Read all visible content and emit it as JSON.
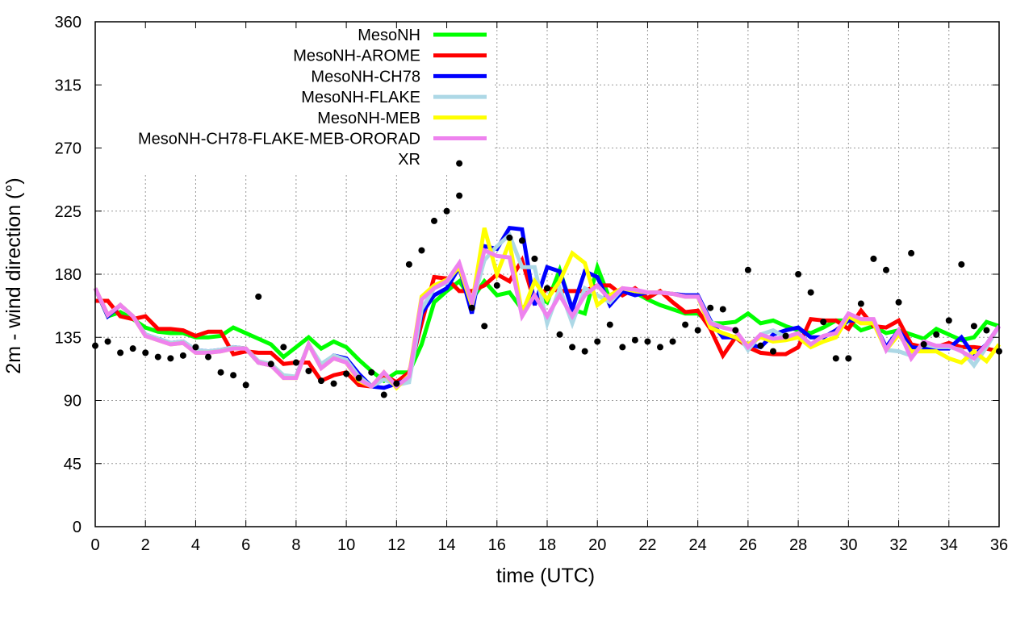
{
  "chart_data": {
    "type": "line",
    "title": "",
    "xlabel": "time (UTC)",
    "ylabel": "2m - wind direction (°)",
    "xlim": [
      0,
      36
    ],
    "ylim": [
      0,
      360
    ],
    "xticks": [
      0,
      2,
      4,
      6,
      8,
      10,
      12,
      14,
      16,
      18,
      20,
      22,
      24,
      26,
      28,
      30,
      32,
      34,
      36
    ],
    "yticks": [
      0,
      45,
      90,
      135,
      180,
      225,
      270,
      315,
      360
    ],
    "grid": true,
    "legend_placement": "top-left",
    "x_step": 0.5,
    "series": [
      {
        "name": "MesoNH",
        "color": "#00ff00",
        "style": "line",
        "values": [
          170,
          150,
          153,
          148,
          142,
          139,
          138,
          138,
          135,
          135,
          136,
          142,
          138,
          134,
          130,
          121,
          128,
          135,
          127,
          132,
          128,
          119,
          111,
          104,
          110,
          110,
          130,
          160,
          168,
          175,
          162,
          175,
          165,
          167,
          155,
          165,
          160,
          183,
          155,
          152,
          185,
          162,
          168,
          167,
          162,
          158,
          155,
          152,
          152,
          145,
          145,
          146,
          152,
          145,
          147,
          143,
          140,
          138,
          142,
          147,
          147,
          140,
          143,
          138,
          140,
          137,
          134,
          141,
          137,
          133,
          135,
          146,
          143
        ]
      },
      {
        "name": "MesoNH-AROME",
        "color": "#ff0000",
        "style": "line",
        "values": [
          161,
          161,
          150,
          148,
          150,
          141,
          141,
          140,
          136,
          139,
          139,
          123,
          125,
          124,
          124,
          116,
          117,
          117,
          104,
          108,
          110,
          101,
          100,
          108,
          103,
          110,
          145,
          178,
          177,
          168,
          168,
          172,
          180,
          175,
          190,
          160,
          170,
          168,
          168,
          168,
          172,
          172,
          165,
          170,
          163,
          168,
          160,
          153,
          154,
          141,
          122,
          135,
          128,
          124,
          123,
          123,
          128,
          148,
          147,
          147,
          141,
          154,
          143,
          142,
          147,
          130,
          128,
          128,
          131,
          128,
          128,
          127,
          125
        ]
      },
      {
        "name": "MesoNH-CH78",
        "color": "#0000ff",
        "style": "line",
        "values": [
          170,
          150,
          158,
          150,
          137,
          134,
          131,
          132,
          126,
          125,
          126,
          128,
          127,
          117,
          115,
          107,
          107,
          130,
          115,
          122,
          120,
          109,
          100,
          99,
          102,
          105,
          152,
          165,
          170,
          185,
          152,
          200,
          198,
          213,
          212,
          158,
          185,
          182,
          155,
          182,
          178,
          158,
          168,
          165,
          167,
          167,
          166,
          165,
          165,
          147,
          135,
          135,
          130,
          128,
          137,
          140,
          142,
          135,
          135,
          140,
          147,
          147,
          146,
          128,
          140,
          128,
          127,
          127,
          127,
          135,
          122,
          130,
          143
        ]
      },
      {
        "name": "MesoNH-FLAKE",
        "color": "#add8e6",
        "style": "line",
        "values": [
          170,
          151,
          158,
          150,
          137,
          134,
          131,
          132,
          126,
          125,
          126,
          128,
          127,
          118,
          116,
          108,
          107,
          130,
          116,
          122,
          119,
          107,
          100,
          105,
          101,
          103,
          155,
          170,
          174,
          186,
          158,
          190,
          200,
          208,
          185,
          185,
          145,
          170,
          145,
          170,
          165,
          160,
          170,
          168,
          167,
          167,
          166,
          164,
          164,
          146,
          142,
          140,
          126,
          137,
          140,
          135,
          138,
          130,
          136,
          138,
          150,
          147,
          146,
          126,
          125,
          122,
          130,
          128,
          128,
          126,
          115,
          128,
          143
        ]
      },
      {
        "name": "MesoNH-MEB",
        "color": "#ffff00",
        "style": "line",
        "values": [
          170,
          151,
          158,
          150,
          136,
          133,
          130,
          131,
          124,
          124,
          125,
          127,
          127,
          117,
          115,
          106,
          106,
          130,
          113,
          120,
          117,
          104,
          100,
          110,
          99,
          108,
          164,
          172,
          176,
          185,
          158,
          213,
          180,
          203,
          152,
          175,
          162,
          175,
          195,
          188,
          158,
          165,
          170,
          168,
          167,
          167,
          166,
          164,
          164,
          142,
          138,
          135,
          130,
          135,
          132,
          133,
          135,
          128,
          132,
          135,
          150,
          145,
          145,
          126,
          137,
          125,
          125,
          125,
          120,
          117,
          125,
          118,
          130
        ]
      },
      {
        "name": "MesoNH-CH78-FLAKE-MEB-ORORAD",
        "color": "#ee82ee",
        "style": "line",
        "values": [
          170,
          151,
          158,
          150,
          136,
          133,
          130,
          131,
          124,
          124,
          125,
          127,
          127,
          117,
          115,
          106,
          106,
          130,
          113,
          120,
          117,
          105,
          100,
          110,
          100,
          107,
          162,
          170,
          175,
          188,
          160,
          197,
          193,
          192,
          150,
          165,
          150,
          165,
          150,
          165,
          172,
          162,
          170,
          169,
          167,
          167,
          166,
          164,
          164,
          145,
          142,
          140,
          128,
          137,
          134,
          135,
          138,
          130,
          136,
          138,
          152,
          148,
          148,
          126,
          140,
          120,
          132,
          129,
          129,
          125,
          120,
          130,
          143
        ]
      },
      {
        "name": "XR",
        "color": "#000000",
        "style": "points",
        "points": [
          [
            0,
            129
          ],
          [
            0.5,
            132
          ],
          [
            1,
            124
          ],
          [
            1.5,
            127
          ],
          [
            2,
            124
          ],
          [
            2.5,
            121
          ],
          [
            3,
            120
          ],
          [
            3.5,
            122
          ],
          [
            4,
            128
          ],
          [
            4.5,
            121
          ],
          [
            5,
            110
          ],
          [
            5.5,
            108
          ],
          [
            6,
            101
          ],
          [
            6.5,
            164
          ],
          [
            7,
            116
          ],
          [
            7.5,
            128
          ],
          [
            8,
            117
          ],
          [
            8.5,
            111
          ],
          [
            9,
            104
          ],
          [
            9.5,
            102
          ],
          [
            10,
            109
          ],
          [
            10.5,
            106
          ],
          [
            11,
            110
          ],
          [
            11.5,
            94
          ],
          [
            12,
            102
          ],
          [
            12.5,
            187
          ],
          [
            13,
            197
          ],
          [
            13.5,
            218
          ],
          [
            14,
            225
          ],
          [
            14.5,
            236
          ],
          [
            14.5,
            259
          ],
          [
            15,
            156
          ],
          [
            15.5,
            143
          ],
          [
            16,
            172
          ],
          [
            16.5,
            206
          ],
          [
            17,
            204
          ],
          [
            17.5,
            191
          ],
          [
            18,
            170
          ],
          [
            18.5,
            137
          ],
          [
            19,
            128
          ],
          [
            19.5,
            125
          ],
          [
            20,
            132
          ],
          [
            20.5,
            144
          ],
          [
            21,
            128
          ],
          [
            21.5,
            133
          ],
          [
            22,
            132
          ],
          [
            22.5,
            128
          ],
          [
            23,
            132
          ],
          [
            23.5,
            144
          ],
          [
            24,
            140
          ],
          [
            24.5,
            156
          ],
          [
            25,
            155
          ],
          [
            25.5,
            140
          ],
          [
            26,
            183
          ],
          [
            26.5,
            129
          ],
          [
            27,
            125
          ],
          [
            27.5,
            136
          ],
          [
            28,
            180
          ],
          [
            28.5,
            167
          ],
          [
            29,
            146
          ],
          [
            29.5,
            120
          ],
          [
            30,
            120
          ],
          [
            30.5,
            159
          ],
          [
            31,
            191
          ],
          [
            31.5,
            183
          ],
          [
            32,
            160
          ],
          [
            32.5,
            195
          ],
          [
            33,
            130
          ],
          [
            33.5,
            137
          ],
          [
            34,
            147
          ],
          [
            34.5,
            187
          ],
          [
            35,
            143
          ],
          [
            35.5,
            140
          ],
          [
            36,
            125
          ]
        ]
      }
    ]
  }
}
